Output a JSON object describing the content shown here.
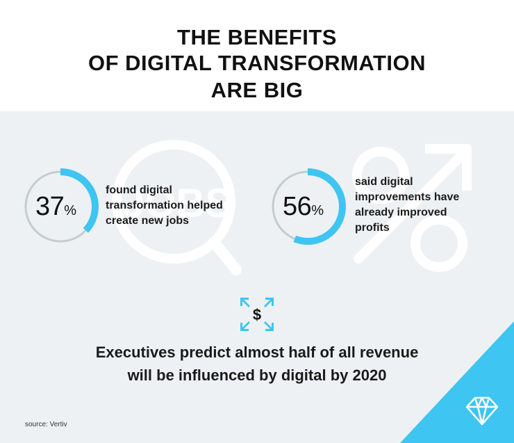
{
  "title": {
    "line1": "THE BENEFITS",
    "line2": "OF DIGITAL TRANSFORMATION",
    "line3": "ARE BIG"
  },
  "background_icons": {
    "magnifier_word": "JOBS"
  },
  "stats": [
    {
      "value": "37",
      "unit": "%",
      "fraction": 0.37,
      "line1": "found digital",
      "line2": "transformation helped",
      "line3": "create new jobs"
    },
    {
      "value": "56",
      "unit": "%",
      "fraction": 0.56,
      "line1": "said digital",
      "line2": "improvements have",
      "line3": "already improved",
      "line4": "profits"
    }
  ],
  "dollar_icon": {
    "symbol": "$",
    "icon": "dollar-expand-icon"
  },
  "executives": {
    "line1": "Executives predict almost half of all revenue",
    "line2": "will be influenced by digital by 2020"
  },
  "source": "source: Vertiv",
  "colors": {
    "accent": "#3ec5f2",
    "ring_track": "#c4ccd0",
    "panel_bg": "#edf1f3",
    "dark": "#111111"
  }
}
